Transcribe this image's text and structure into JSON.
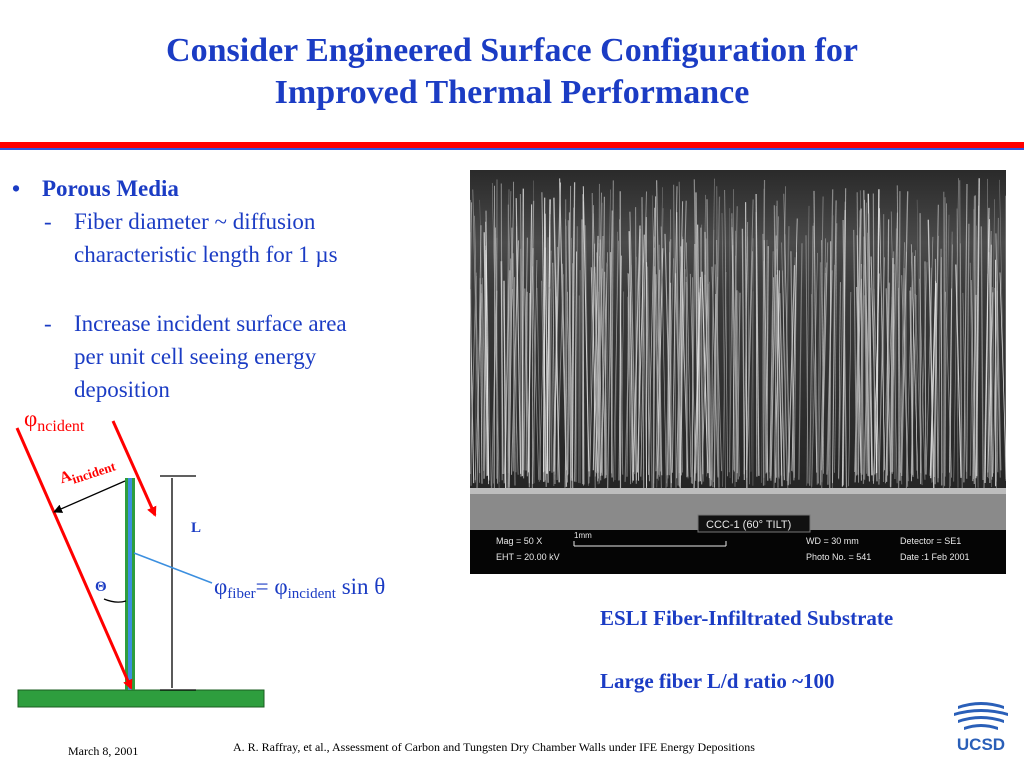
{
  "slide": {
    "title_line1": "Consider Engineered Surface Configuration for",
    "title_line2": "Improved Thermal Performance"
  },
  "bullets": {
    "head": "Porous Media",
    "items": [
      {
        "dash": "-",
        "line1": "Fiber diameter ~ diffusion",
        "line2": "characteristic length for 1 µs"
      },
      {
        "dash": "-",
        "line1": "Increase incident surface area",
        "line2": "per unit cell  seeing energy",
        "line3": "deposition"
      }
    ]
  },
  "diagram": {
    "phi_symbol": "φ",
    "phi_incident_sub": "ncident",
    "a_letter": "A",
    "a_sub": "incident",
    "length_label": "L",
    "angle_label": "Θ",
    "eq_phi1": "φ",
    "eq_sub1": "fiber",
    "eq_mid": "= φ",
    "eq_sub2": "incident",
    "eq_tail": " sin θ",
    "colors": {
      "incident_arrow": "#ff0000",
      "fiber": "#2e9e3e",
      "fiber_core": "#3b8fdf",
      "base": "#2e9e3e"
    }
  },
  "sem_image": {
    "frame_tag": "CCC-1  (60° TILT)",
    "mag": "Mag =    50 X",
    "scale": "1mm",
    "eht": "EHT = 20.00 kV",
    "wd": "WD =    30 mm",
    "photo": "Photo No. =  541",
    "detector": "Detector = SE1",
    "date": "Date :1 Feb 2001"
  },
  "captions": {
    "line1": "ESLI Fiber-Infiltrated Substrate",
    "line2": "Large fiber L/d ratio ~100"
  },
  "footer": {
    "date": "March 8, 2001",
    "citation": "A. R. Raffray, et al., Assessment of Carbon and Tungsten Dry Chamber Walls under IFE Energy Depositions",
    "logo_text": "UCSD"
  }
}
